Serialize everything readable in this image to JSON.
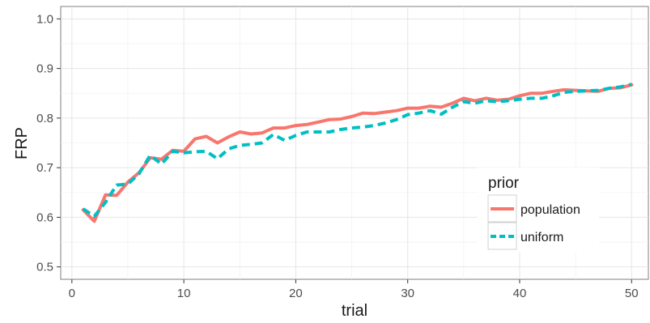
{
  "chart_data": {
    "type": "line",
    "xlabel": "trial",
    "ylabel": "FRP",
    "xlim": [
      -1,
      51.5
    ],
    "ylim": [
      0.475,
      1.025
    ],
    "x_ticks": [
      0,
      10,
      20,
      30,
      40,
      50
    ],
    "x_tick_labels": [
      "0",
      "10",
      "20",
      "30",
      "40",
      "50"
    ],
    "y_ticks": [
      0.5,
      0.6,
      0.7,
      0.8,
      0.9,
      1.0
    ],
    "y_tick_labels": [
      "0.5",
      "0.6",
      "0.7",
      "0.8",
      "0.9",
      "1.0"
    ],
    "grid": true,
    "legend": {
      "title": "prior",
      "placement": "bottom-right inside",
      "entries": [
        "population",
        "uniform"
      ]
    },
    "x": [
      1,
      2,
      3,
      4,
      5,
      6,
      7,
      8,
      9,
      10,
      11,
      12,
      13,
      14,
      15,
      16,
      17,
      18,
      19,
      20,
      21,
      22,
      23,
      24,
      25,
      26,
      27,
      28,
      29,
      30,
      31,
      32,
      33,
      34,
      35,
      36,
      37,
      38,
      39,
      40,
      41,
      42,
      43,
      44,
      45,
      46,
      47,
      48,
      49,
      50
    ],
    "series": [
      {
        "name": "population",
        "color": "#F8766D",
        "dash": "solid",
        "values": [
          0.615,
          0.592,
          0.645,
          0.644,
          0.671,
          0.69,
          0.72,
          0.717,
          0.735,
          0.733,
          0.758,
          0.763,
          0.75,
          0.762,
          0.772,
          0.768,
          0.77,
          0.78,
          0.78,
          0.785,
          0.787,
          0.792,
          0.797,
          0.798,
          0.803,
          0.81,
          0.809,
          0.812,
          0.815,
          0.82,
          0.82,
          0.824,
          0.822,
          0.83,
          0.84,
          0.835,
          0.84,
          0.836,
          0.838,
          0.845,
          0.85,
          0.85,
          0.854,
          0.857,
          0.856,
          0.855,
          0.854,
          0.86,
          0.861,
          0.867
        ]
      },
      {
        "name": "uniform",
        "color": "#00BFC4",
        "dash": "dashed",
        "values": [
          0.617,
          0.602,
          0.63,
          0.665,
          0.667,
          0.688,
          0.725,
          0.707,
          0.733,
          0.73,
          0.732,
          0.733,
          0.718,
          0.738,
          0.745,
          0.747,
          0.75,
          0.767,
          0.755,
          0.765,
          0.772,
          0.772,
          0.772,
          0.777,
          0.78,
          0.782,
          0.785,
          0.79,
          0.797,
          0.807,
          0.81,
          0.815,
          0.808,
          0.822,
          0.833,
          0.83,
          0.835,
          0.833,
          0.835,
          0.838,
          0.84,
          0.84,
          0.845,
          0.852,
          0.854,
          0.855,
          0.856,
          0.86,
          0.863,
          0.868
        ]
      }
    ]
  }
}
